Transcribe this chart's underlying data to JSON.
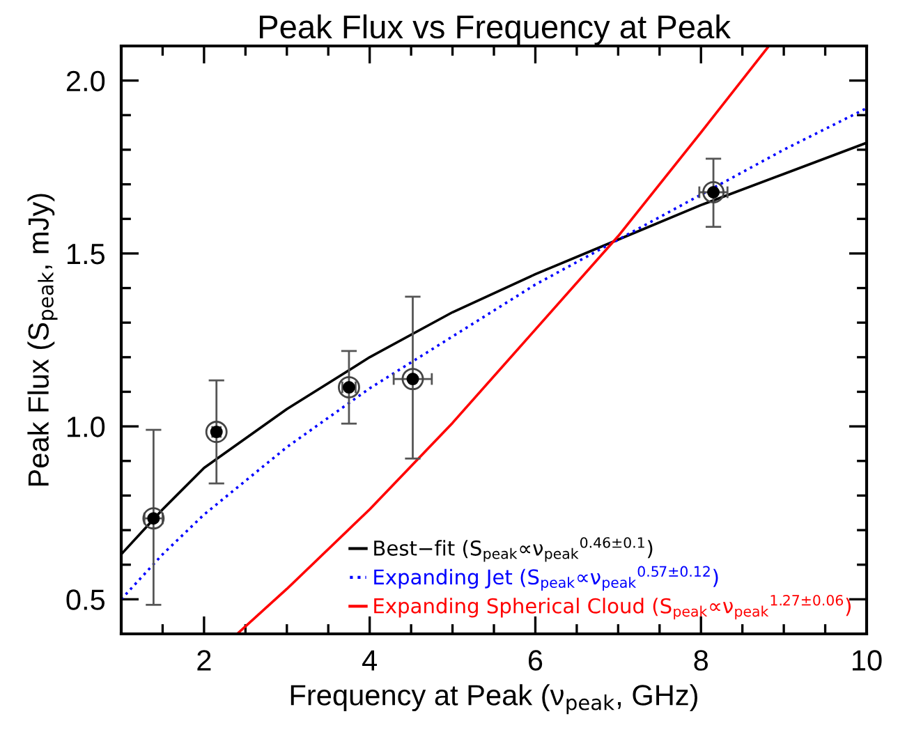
{
  "chart_data": {
    "type": "line",
    "title": "Peak Flux vs Frequency at Peak",
    "xlabel": "Frequency at Peak (ν$_{peak}$, GHz)",
    "ylabel": "Peak Flux (S$_{peak}$, mJy)",
    "xlim": [
      1,
      10
    ],
    "xticks": [
      2,
      4,
      6,
      8,
      10
    ],
    "ylim": [
      0.4,
      2.1
    ],
    "yticks": [
      0.5,
      {
        "value": 1,
        "label": "1.0"
      },
      1.5,
      {
        "value": 2,
        "label": "2.0"
      }
    ],
    "grid": false,
    "legend": "bottom right",
    "series": [
      {
        "type": "scatter",
        "color": "#000000",
        "marker": "circle",
        "x": [
          1.39,
          2.15,
          3.75,
          4.52,
          8.15
        ],
        "values": [
          0.734,
          0.984,
          1.113,
          1.137,
          1.677
        ],
        "errors": [
          [
            0.484,
            0.99
          ],
          [
            0.835,
            1.133
          ],
          [
            1.008,
            1.218
          ],
          [
            0.907,
            1.375
          ],
          [
            1.577,
            1.774
          ]
        ],
        "xerrors": [
          0.11,
          0.05,
          0.08,
          0.23,
          0.17
        ]
      },
      {
        "name": "Best−fit (S$_{peak}$∝ν$_{peak}$$^{0.46±0.1}$)",
        "color": "#000000",
        "line_style": "solid",
        "x": [
          1,
          1.5,
          2,
          3,
          4,
          5,
          6,
          7,
          8,
          9,
          10
        ],
        "values": [
          0.63,
          0.76,
          0.88,
          1.05,
          1.2,
          1.33,
          1.44,
          1.54,
          1.64,
          1.73,
          1.82
        ]
      },
      {
        "name": "Expanding Jet (S$_{peak}$∝ν$_{peak}$$^{0.57±0.12}$)",
        "color": "#0000ff",
        "line_style": "dotted",
        "x": [
          1,
          1.5,
          2,
          3,
          4,
          5,
          6,
          7,
          8,
          9,
          10
        ],
        "values": [
          0.5,
          0.63,
          0.745,
          0.94,
          1.11,
          1.26,
          1.41,
          1.54,
          1.67,
          1.8,
          1.92
        ]
      },
      {
        "name": "Expanding Spherical Cloud (S$_{peak}$∝ν$_{peak}$$^{1.27±0.06}$)",
        "color": "#ff0000",
        "line_style": "solid",
        "x": [
          2.4,
          3,
          4,
          5,
          6,
          7,
          8,
          8.82
        ],
        "values": [
          0.4,
          0.53,
          0.76,
          1.01,
          1.28,
          1.55,
          1.85,
          2.1
        ]
      }
    ]
  }
}
